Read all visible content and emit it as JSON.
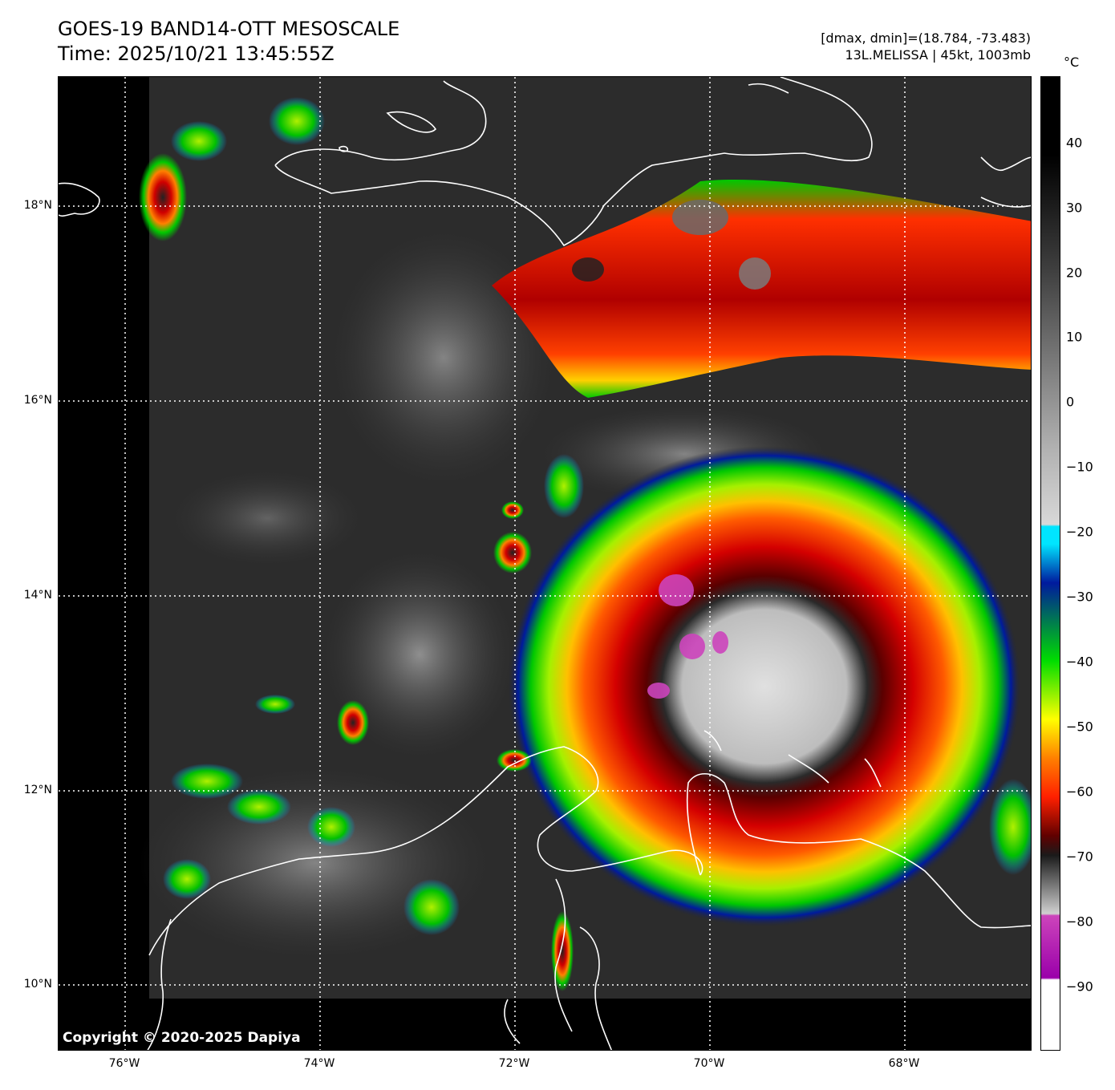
{
  "header": {
    "title_line1": "GOES-19 BAND14-OTT MESOSCALE",
    "title_line2": "Time: 2025/10/21 13:45:55Z",
    "info_line1": "[dmax, dmin]=(18.784, -73.483)",
    "info_line2": "13L.MELISSA | 45kt, 1003mb"
  },
  "map": {
    "lat_labels": [
      "18°N",
      "16°N",
      "14°N",
      "12°N",
      "10°N"
    ],
    "lon_labels": [
      "76°W",
      "74°W",
      "72°W",
      "70°W",
      "68°W"
    ],
    "copyright": "Copyright © 2020-2025 Dapiya",
    "storm": "13L.MELISSA"
  },
  "colorbar": {
    "unit": "°C",
    "ticks": [
      "40",
      "30",
      "20",
      "10",
      "0",
      "−10",
      "−20",
      "−30",
      "−40",
      "−50",
      "−60",
      "−70",
      "−80",
      "−90"
    ],
    "colors": {
      "warm_black": "#000000",
      "gray": "#b0b0b0",
      "cyan": "#00e5ff",
      "blue": "#001a9e",
      "green": "#00dd00",
      "yellow": "#ffff00",
      "red": "#ff2000",
      "dark_red": "#600000",
      "magenta": "#cc44bb",
      "white": "#ffffff"
    }
  }
}
